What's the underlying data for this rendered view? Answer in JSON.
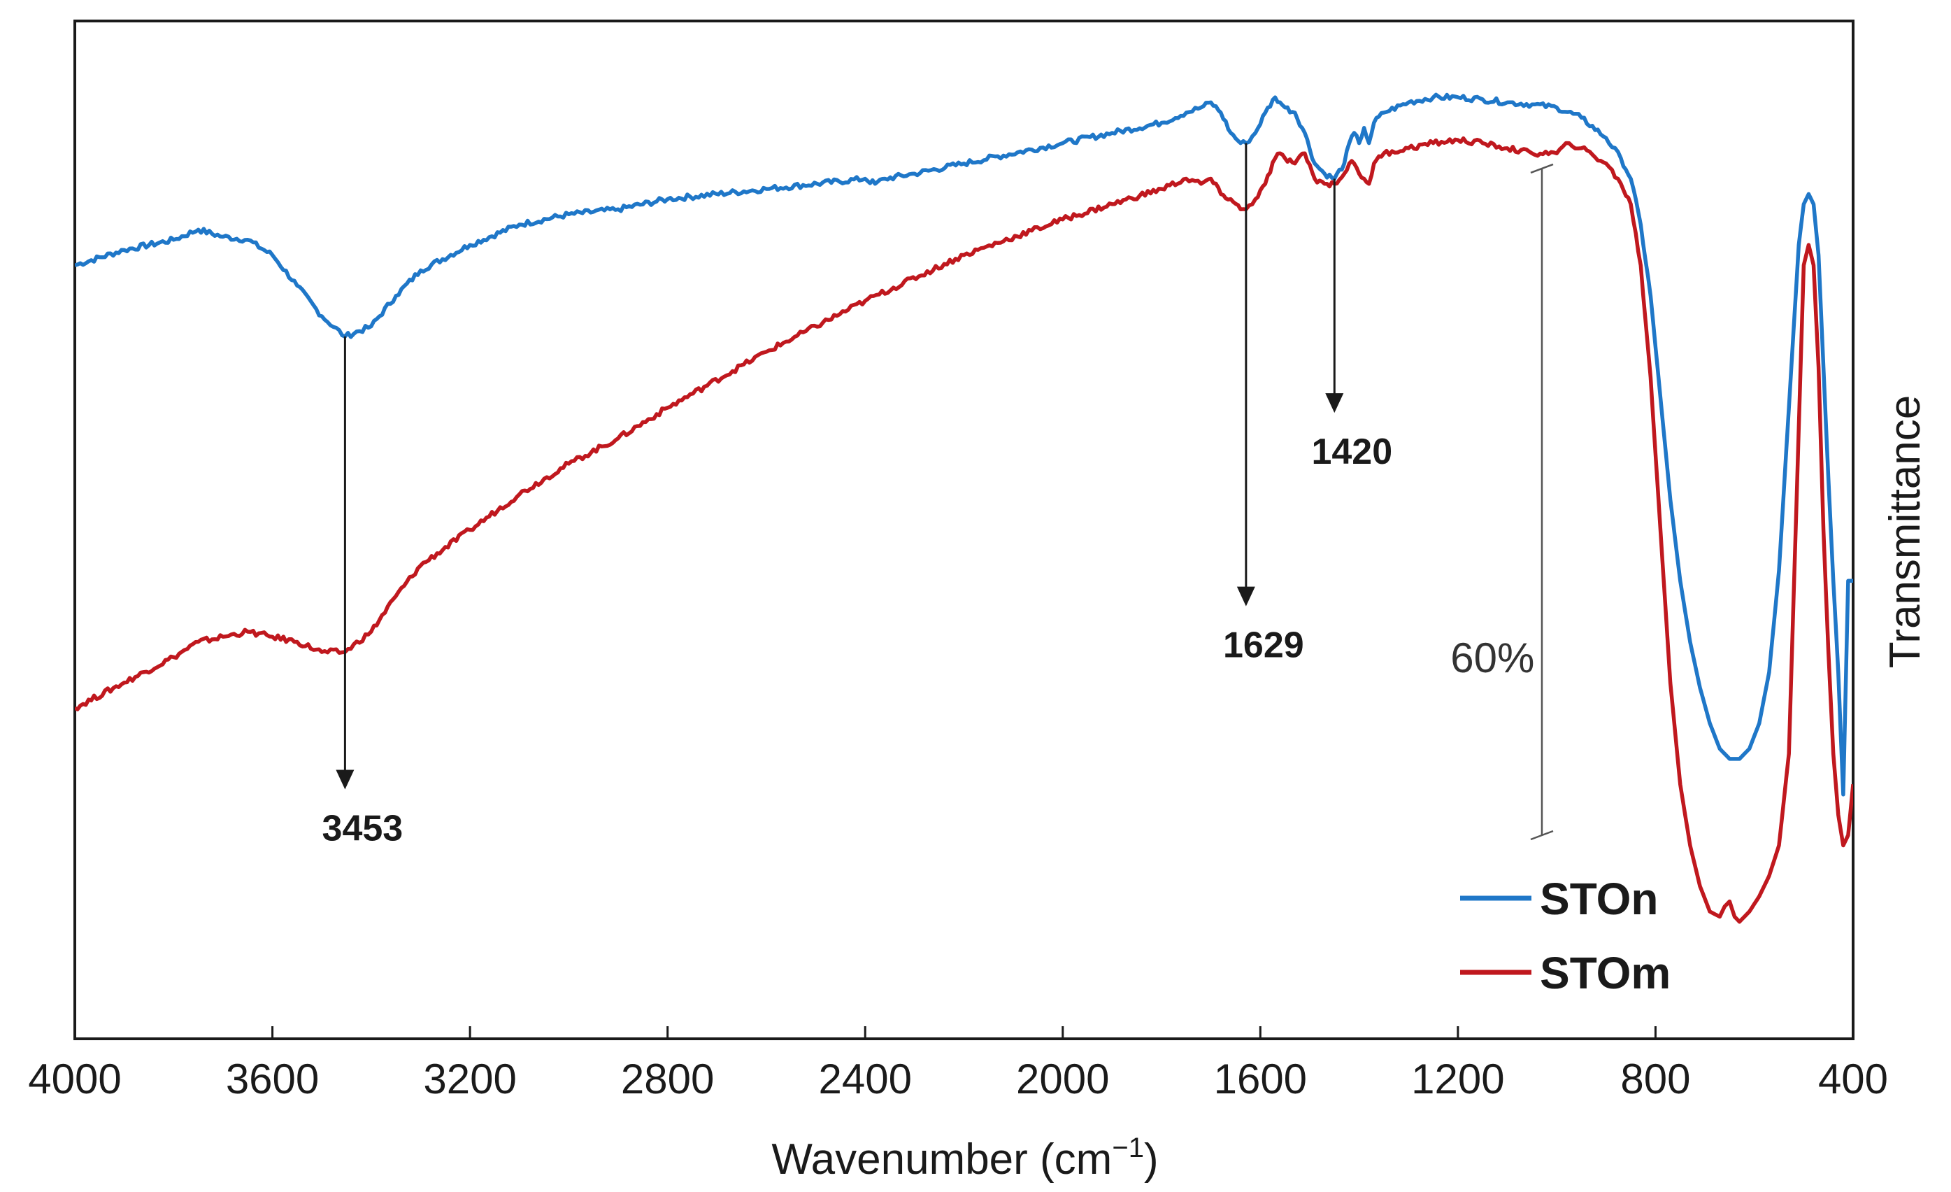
{
  "chart_data": {
    "type": "line",
    "title": "",
    "xlabel": "Wavenumber (cm",
    "xlabel_superscript": "−1",
    "xlabel_suffix": ")",
    "ylabel": "Transmittance",
    "xlim": [
      4000,
      400
    ],
    "x_reversed": true,
    "ylim": [
      0,
      100
    ],
    "yunits": "arbitrary (offset curves, relative transmittance)",
    "x_ticks": [
      4000,
      3600,
      3200,
      2800,
      2400,
      2000,
      1600,
      1200,
      800,
      400
    ],
    "x_tick_labels": [
      "4000",
      "3600",
      "3200",
      "2800",
      "2400",
      "2000",
      "1600",
      "1200",
      "800",
      "400"
    ],
    "grid": false,
    "legend_position": "bottom-right",
    "series": [
      {
        "name": "STOn",
        "color": "#1f77c8",
        "x": [
          4000,
          3900,
          3800,
          3750,
          3700,
          3650,
          3600,
          3550,
          3500,
          3453,
          3400,
          3350,
          3300,
          3200,
          3100,
          3000,
          2900,
          2800,
          2600,
          2400,
          2380,
          2360,
          2300,
          2200,
          2000,
          1900,
          1800,
          1750,
          1720,
          1700,
          1680,
          1660,
          1640,
          1629,
          1610,
          1590,
          1570,
          1560,
          1550,
          1530,
          1510,
          1490,
          1470,
          1450,
          1430,
          1420,
          1410,
          1400,
          1390,
          1380,
          1370,
          1350,
          1300,
          1250,
          1200,
          1150,
          1100,
          1050,
          1000,
          950,
          900,
          870,
          850,
          830,
          810,
          790,
          770,
          750,
          730,
          710,
          690,
          670,
          650,
          630,
          610,
          590,
          570,
          550,
          530,
          510,
          500,
          490,
          480,
          470,
          460,
          450,
          440,
          430,
          420,
          410,
          400
        ],
        "values": [
          76.0,
          77.5,
          78.5,
          79.5,
          78.8,
          78.5,
          77.0,
          74.0,
          71.0,
          69.0,
          70.0,
          73.0,
          75.5,
          78.0,
          80.0,
          81.0,
          81.5,
          82.5,
          83.5,
          84.5,
          84.0,
          84.5,
          85.0,
          86.0,
          88.0,
          89.0,
          90.0,
          91.0,
          91.5,
          92.0,
          91.0,
          89.0,
          88.0,
          88.0,
          89.0,
          91.0,
          92.5,
          92.0,
          91.5,
          91.0,
          89.0,
          86.0,
          85.0,
          84.5,
          86.0,
          88.0,
          89.0,
          88.0,
          89.5,
          88.0,
          90.0,
          91.0,
          92.0,
          92.5,
          92.5,
          92.3,
          92.0,
          91.8,
          91.5,
          90.5,
          88.5,
          86.5,
          84.5,
          80.0,
          73.0,
          63.0,
          53.0,
          45.0,
          39.0,
          34.5,
          31.0,
          28.5,
          27.5,
          27.5,
          28.5,
          31.0,
          36.0,
          46.0,
          62.0,
          78.0,
          82.0,
          83.0,
          82.0,
          77.0,
          66.0,
          55.0,
          45.0,
          36.0,
          24.0,
          45.0,
          45.0
        ]
      },
      {
        "name": "STOm",
        "color": "#c0181e",
        "x": [
          4000,
          3900,
          3800,
          3750,
          3700,
          3650,
          3600,
          3550,
          3500,
          3453,
          3400,
          3350,
          3300,
          3200,
          3100,
          3000,
          2900,
          2800,
          2600,
          2400,
          2200,
          2000,
          1900,
          1800,
          1750,
          1720,
          1700,
          1680,
          1660,
          1640,
          1629,
          1610,
          1590,
          1570,
          1560,
          1550,
          1530,
          1510,
          1490,
          1470,
          1450,
          1430,
          1420,
          1410,
          1400,
          1390,
          1380,
          1370,
          1350,
          1300,
          1250,
          1200,
          1150,
          1100,
          1050,
          1000,
          975,
          950,
          900,
          870,
          850,
          830,
          810,
          790,
          770,
          750,
          730,
          710,
          690,
          670,
          660,
          650,
          640,
          630,
          610,
          590,
          570,
          550,
          530,
          510,
          500,
          490,
          480,
          470,
          460,
          450,
          440,
          430,
          420,
          410,
          400
        ],
        "values": [
          32.5,
          35.0,
          37.5,
          39.0,
          39.5,
          40.0,
          39.5,
          39.0,
          38.0,
          38.0,
          40.0,
          43.5,
          46.5,
          50.0,
          53.5,
          56.5,
          59.0,
          62.0,
          67.5,
          72.5,
          77.0,
          80.5,
          82.0,
          83.5,
          84.5,
          84.0,
          84.5,
          83.0,
          82.5,
          81.5,
          81.5,
          82.5,
          84.0,
          86.5,
          87.0,
          86.5,
          86.0,
          87.0,
          84.5,
          84.0,
          84.0,
          85.0,
          86.0,
          86.0,
          85.0,
          84.5,
          84.0,
          86.0,
          87.0,
          87.5,
          88.0,
          88.3,
          88.0,
          87.5,
          87.0,
          87.0,
          88.0,
          87.5,
          86.0,
          84.0,
          82.0,
          76.0,
          65.0,
          50.0,
          35.0,
          25.0,
          19.0,
          15.0,
          12.5,
          12.0,
          13.0,
          13.5,
          12.0,
          11.5,
          12.5,
          14.0,
          16.0,
          19.0,
          28.0,
          60.0,
          76.0,
          78.0,
          76.0,
          66.0,
          50.0,
          38.0,
          28.0,
          22.0,
          19.0,
          20.0,
          25.0
        ]
      }
    ],
    "annotations": [
      {
        "label": "3453",
        "x": 3453,
        "y_from": 69.0,
        "y_to": 24.5,
        "label_y": 19.5
      },
      {
        "label": "1629",
        "x": 1629,
        "y_from": 88.0,
        "y_to": 42.5,
        "label_y": 37.5
      },
      {
        "label": "1420",
        "x": 1450,
        "y_from": 84.5,
        "y_to": 61.5,
        "label_y": 56.5
      }
    ],
    "scale_bar": {
      "label": "60%",
      "x": 1030,
      "y_top": 85.5,
      "y_bottom": 20.0,
      "label_x": 1130,
      "label_y": 36.0
    }
  }
}
